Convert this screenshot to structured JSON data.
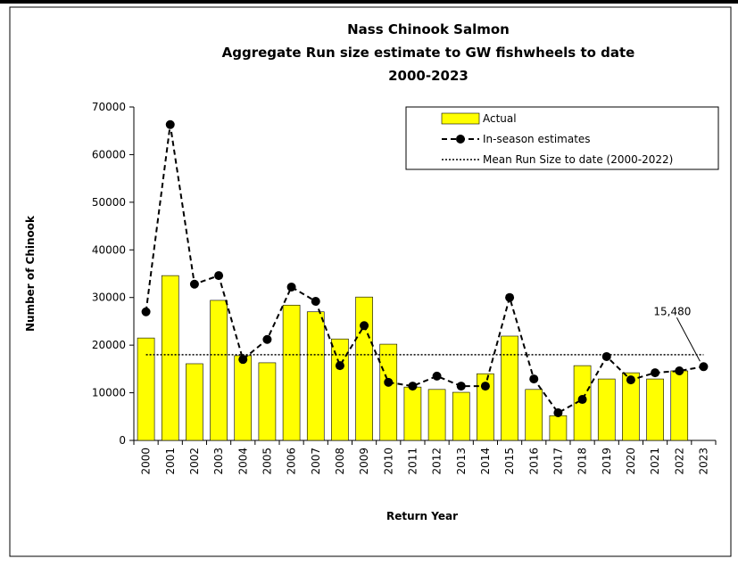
{
  "chart_data": {
    "type": "bar-line",
    "title": [
      "Nass Chinook Salmon",
      "Aggregate Run size estimate to GW fishwheels to date",
      "2000-2023"
    ],
    "x_label": "Return Year",
    "y_label": "Number of Chinook",
    "categories": [
      "2000",
      "2001",
      "2002",
      "2003",
      "2004",
      "2005",
      "2006",
      "2007",
      "2008",
      "2009",
      "2010",
      "2011",
      "2012",
      "2013",
      "2014",
      "2015",
      "2016",
      "2017",
      "2018",
      "2019",
      "2020",
      "2021",
      "2022",
      "2023"
    ],
    "ylim": [
      0,
      70000
    ],
    "yticks": [
      0,
      10000,
      20000,
      30000,
      40000,
      50000,
      60000,
      70000
    ],
    "series": [
      {
        "name": "Actual",
        "kind": "bar",
        "color": "#ffff00",
        "values": [
          21500,
          34600,
          16100,
          29400,
          17800,
          16300,
          28400,
          27000,
          21300,
          30100,
          20200,
          11200,
          10700,
          10100,
          14000,
          21900,
          10700,
          5200,
          15700,
          12900,
          14200,
          12900,
          14600,
          null
        ]
      },
      {
        "name": "In-season estimates",
        "kind": "line",
        "color": "#000000",
        "values": [
          27000,
          66300,
          32800,
          34600,
          17000,
          21200,
          32200,
          29200,
          15700,
          24100,
          12200,
          11400,
          13500,
          11400,
          11400,
          30000,
          12900,
          5800,
          8600,
          17600,
          12700,
          14200,
          14600,
          15480
        ],
        "value_labels": [
          null,
          null,
          null,
          null,
          null,
          null,
          null,
          null,
          null,
          null,
          null,
          null,
          null,
          null,
          null,
          null,
          null,
          null,
          null,
          null,
          null,
          null,
          null,
          "15,480"
        ]
      },
      {
        "name": "Mean Run Size to date (2000-2022)",
        "kind": "hline",
        "color": "#000000",
        "value": 18000
      }
    ]
  }
}
